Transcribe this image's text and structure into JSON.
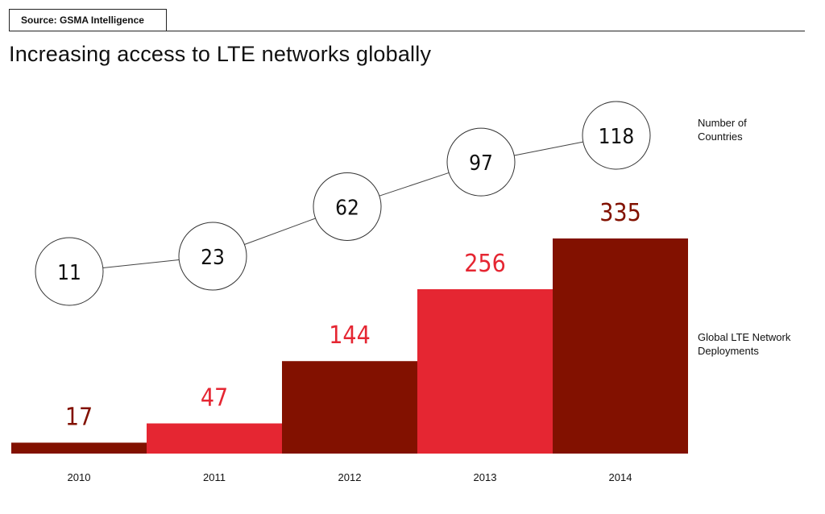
{
  "source_label": "Source: GSMA Intelligence",
  "title": "Increasing access to LTE networks globally",
  "chart_data": {
    "type": "bar",
    "title": "Increasing access to LTE networks globally",
    "categories": [
      "2010",
      "2011",
      "2012",
      "2013",
      "2014"
    ],
    "series": [
      {
        "name": "Global LTE Network Deployments",
        "values": [
          17,
          47,
          144,
          256,
          335
        ],
        "colors": [
          "#821100",
          "#e52632",
          "#821100",
          "#e52632",
          "#821100"
        ],
        "label_colors": [
          "#821100",
          "#e52632",
          "#e52632",
          "#e52632",
          "#821100"
        ]
      },
      {
        "name": "Number of Countries",
        "type": "line",
        "marker": "circle",
        "values": [
          11,
          23,
          62,
          97,
          118
        ]
      }
    ],
    "legend_labels": {
      "countries": "Number of\nCountries",
      "deployments": "Global LTE Network\nDeployments"
    },
    "grid": false,
    "legend_placement": "right",
    "ylim": [
      0,
      335
    ]
  }
}
